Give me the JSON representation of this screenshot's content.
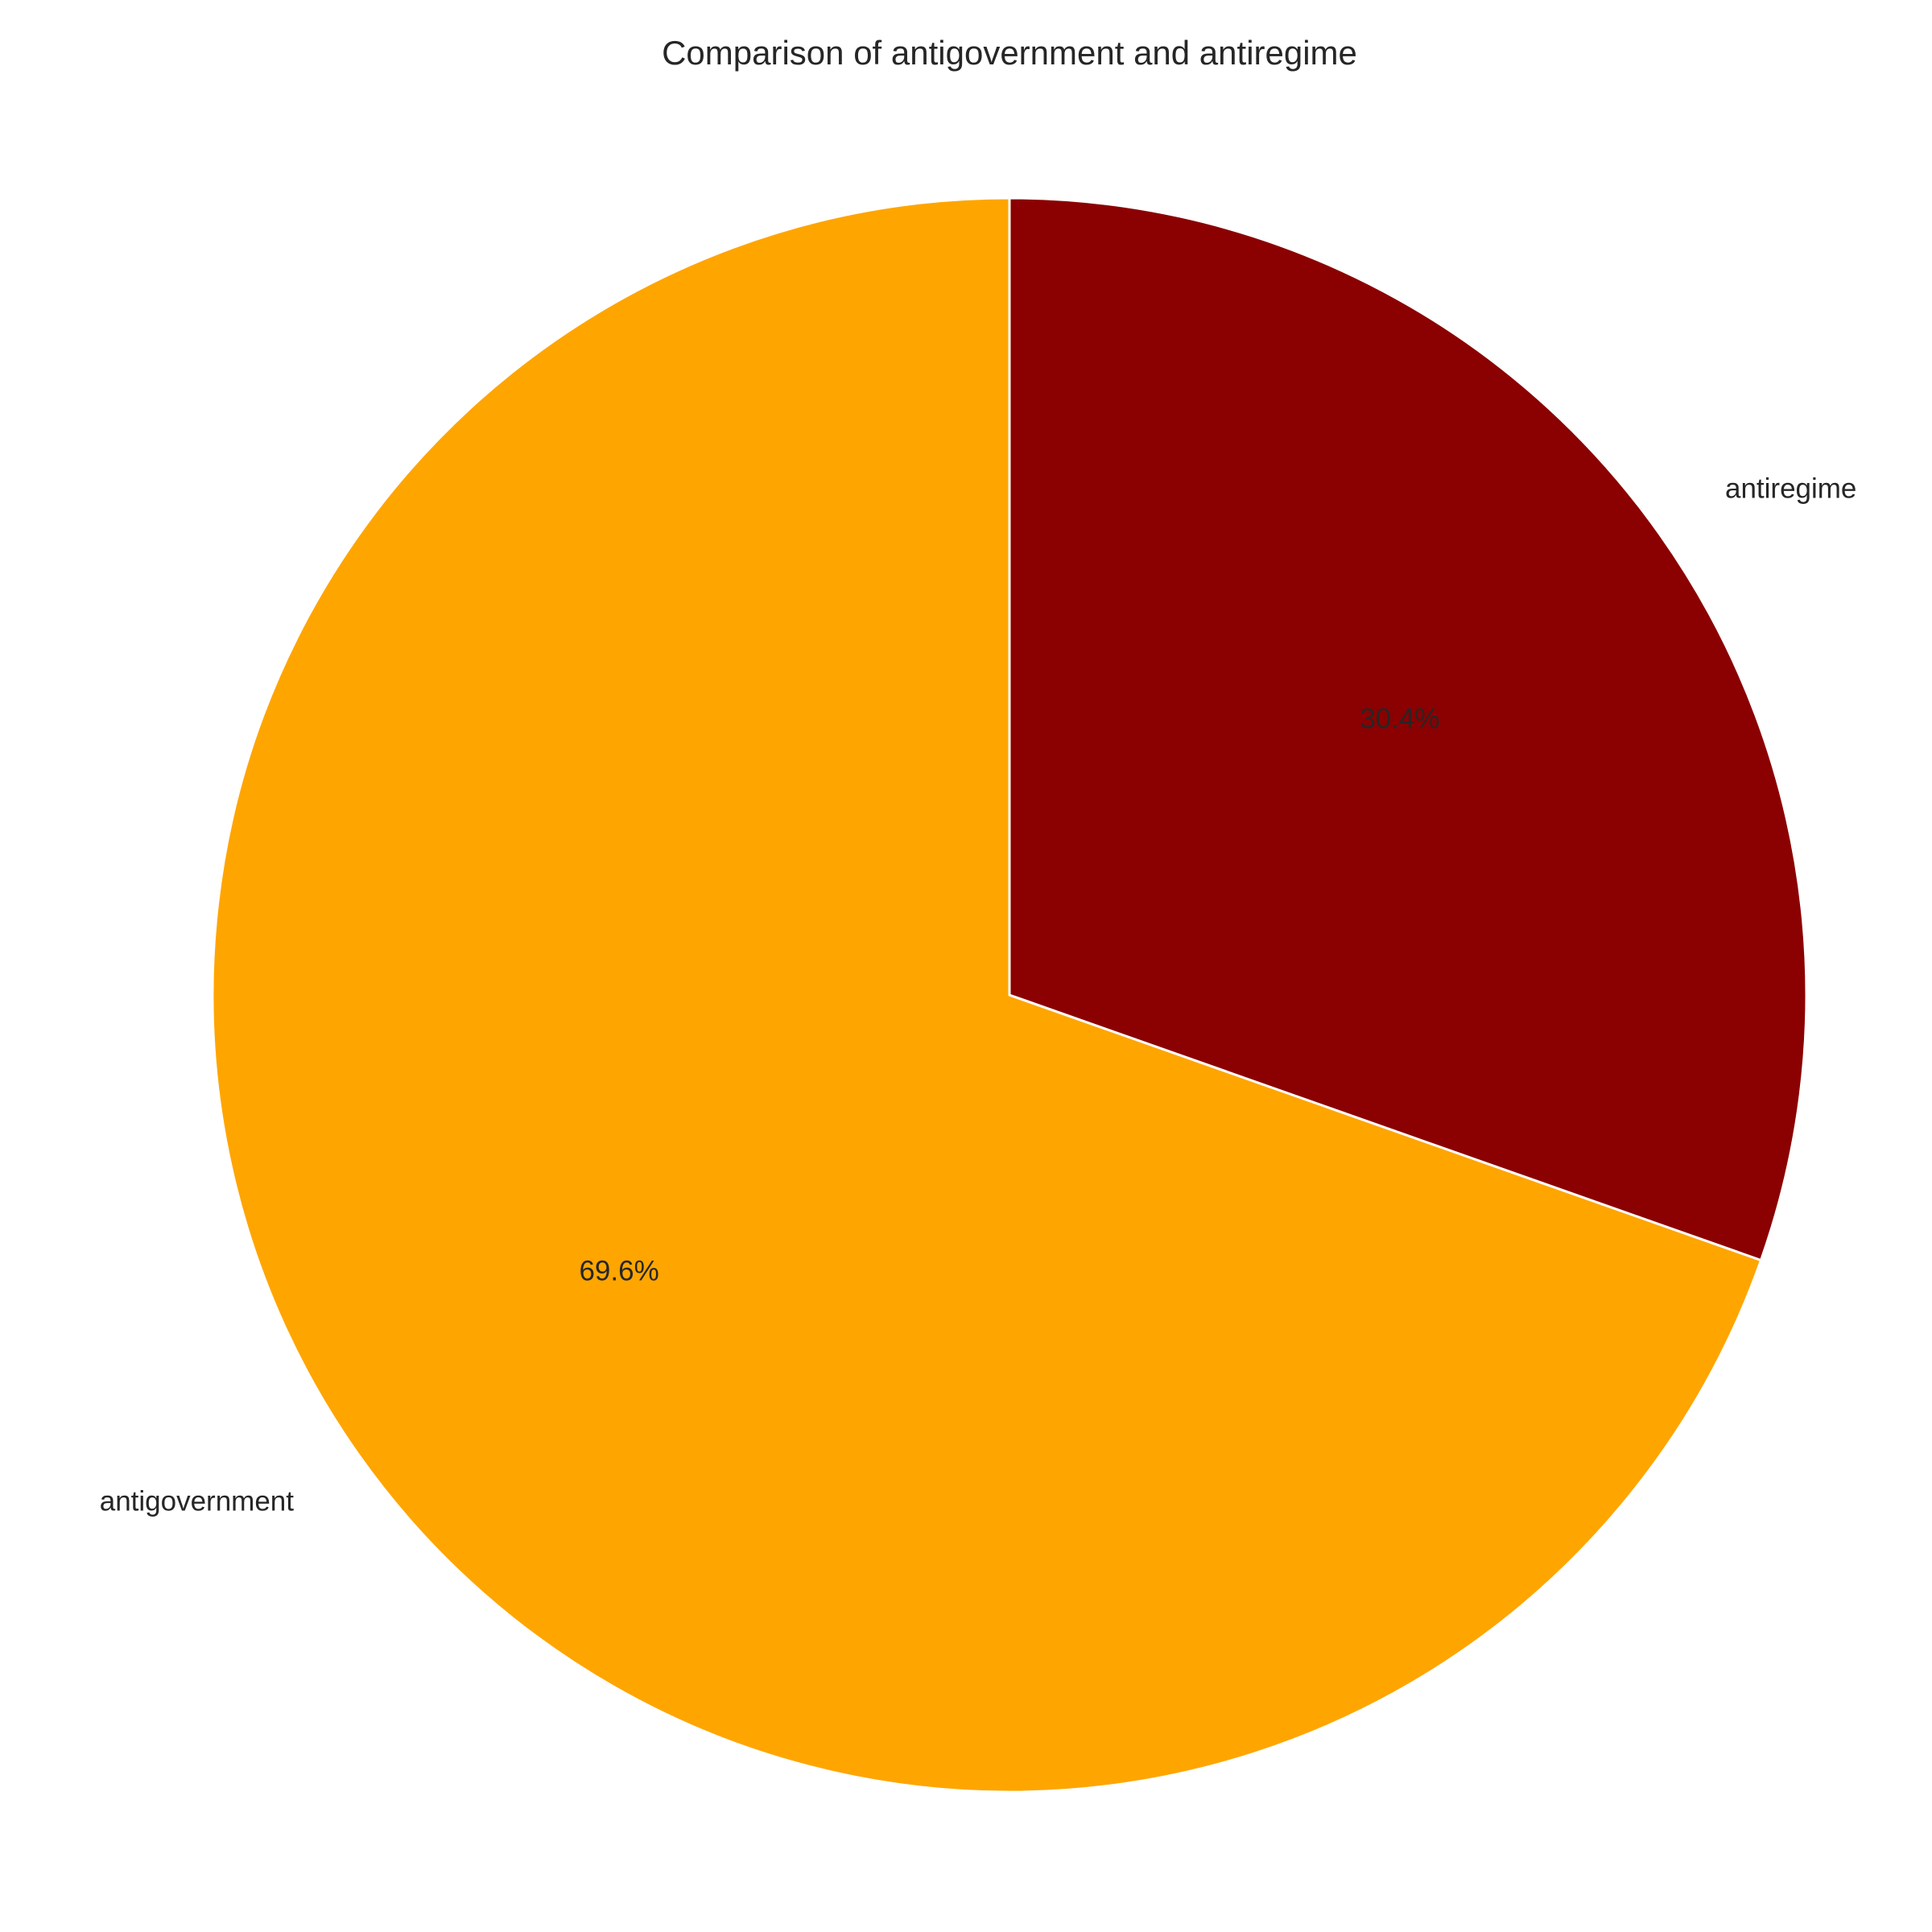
{
  "chart_data": {
    "type": "pie",
    "title": "Comparison of antigovernment and antiregime",
    "categories": [
      "antigovernment",
      "antiregime"
    ],
    "values": [
      69.6,
      30.4
    ],
    "value_labels": [
      "69.6%",
      "30.4%"
    ],
    "colors": [
      "#FFA500",
      "#8B0000"
    ],
    "start_angle_deg": 90,
    "direction": "counterclockwise",
    "edge_color": "#ffffff",
    "legend": "none"
  }
}
